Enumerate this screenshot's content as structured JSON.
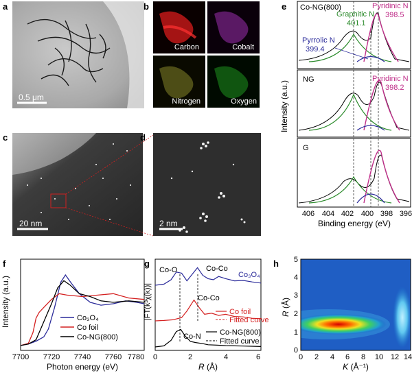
{
  "panels": {
    "a": {
      "letter": "a",
      "scale_bar": "0.5 μm"
    },
    "b": {
      "letter": "b",
      "maps": [
        "Carbon",
        "Cobalt",
        "Nitrogen",
        "Oxygen"
      ],
      "colors": [
        "#d42020",
        "#b040c0",
        "#c8c040",
        "#30b030"
      ]
    },
    "c": {
      "letter": "c",
      "scale_bar": "20 nm"
    },
    "d": {
      "letter": "d",
      "scale_bar": "2 nm"
    },
    "e": {
      "letter": "e",
      "ylabel": "Intensity (a.u.)",
      "xlabel": "Binding energy (eV)",
      "xticks": [
        "406",
        "404",
        "402",
        "400",
        "398",
        "396"
      ],
      "subplots": [
        {
          "name": "Co-NG(800)",
          "annotations": [
            {
              "text": "Graphitic N",
              "color": "#2a8a2a"
            },
            {
              "text": "401.1",
              "color": "#2a8a2a"
            },
            {
              "text": "Pyridinic N",
              "color": "#c0308a"
            },
            {
              "text": "398.5",
              "color": "#c0308a"
            },
            {
              "text": "Pyrrolic N",
              "color": "#2a2a9a"
            },
            {
              "text": "399.4",
              "color": "#2a2a9a"
            }
          ]
        },
        {
          "name": "NG",
          "annotations": [
            {
              "text": "Pyridinic N",
              "color": "#c0308a"
            },
            {
              "text": "398.2",
              "color": "#c0308a"
            }
          ]
        },
        {
          "name": "G",
          "annotations": []
        }
      ]
    },
    "f": {
      "letter": "f",
      "ylabel": "Intensity (a.u.)",
      "xlabel": "Photon energy (eV)",
      "xticks": [
        "7700",
        "7720",
        "7740",
        "7760",
        "7780"
      ],
      "legend": [
        {
          "text": "Co₃O₄",
          "color": "#2b2b9a"
        },
        {
          "text": "Co foil",
          "color": "#d42020"
        },
        {
          "text": "Co-NG(800)",
          "color": "#000000"
        }
      ]
    },
    "g": {
      "letter": "g",
      "ylabel": "|FT(k³χ(k))|",
      "xlabel_italic": "R",
      "xlabel_rest": " (Å)",
      "xticks": [
        "0",
        "2",
        "4",
        "6"
      ],
      "labels": [
        {
          "text": "Co-O",
          "color": "#000000"
        },
        {
          "text": "Co-Co",
          "color": "#000000"
        },
        {
          "text": "Co₃O₄",
          "color": "#2b2b9a"
        },
        {
          "text": "Co-Co",
          "color": "#000000"
        },
        {
          "text": "Co foil",
          "color": "#d42020"
        },
        {
          "text": "Fitted curve",
          "color": "#d42020"
        },
        {
          "text": "Co-N",
          "color": "#000000"
        },
        {
          "text": "Co-NG(800)",
          "color": "#000000"
        },
        {
          "text": "Fitted curve",
          "color": "#000000"
        }
      ]
    },
    "h": {
      "letter": "h",
      "ylabel_italic": "R",
      "ylabel_rest": " (Å)",
      "xlabel_italic": "K",
      "xlabel_rest": " (Å⁻¹)",
      "xticks": [
        "0",
        "2",
        "4",
        "6",
        "8",
        "10",
        "12",
        "14"
      ],
      "yticks": [
        "0",
        "1",
        "2",
        "3",
        "4",
        "5"
      ]
    }
  },
  "chart_data": [
    {
      "type": "line",
      "panel": "e",
      "xlim": [
        407,
        395
      ],
      "x_unit": "eV",
      "series": [
        {
          "name": "Co-NG(800)",
          "x": [
            406.5,
            405,
            404,
            403,
            402,
            401.5,
            401.1,
            400.5,
            400,
            399.4,
            399,
            398.5,
            398,
            397.5,
            397,
            396.5,
            396,
            395.5
          ],
          "y": [
            0.05,
            0.07,
            0.12,
            0.25,
            0.45,
            0.55,
            0.58,
            0.5,
            0.42,
            0.5,
            0.75,
            1.0,
            0.85,
            0.45,
            0.15,
            0.06,
            0.04,
            0.03
          ]
        },
        {
          "name": "NG",
          "x": [
            406.5,
            405,
            404,
            403,
            402,
            401.5,
            401.1,
            400.5,
            400,
            399.5,
            399,
            398.5,
            398.2,
            397.8,
            397.5,
            397,
            396.5,
            396,
            395.5
          ],
          "y": [
            0.05,
            0.07,
            0.15,
            0.35,
            0.65,
            0.78,
            0.8,
            0.6,
            0.48,
            0.46,
            0.7,
            0.95,
            1.0,
            0.75,
            0.45,
            0.15,
            0.06,
            0.04,
            0.03
          ]
        },
        {
          "name": "G",
          "x": [
            406.5,
            405,
            404,
            403,
            402,
            401.5,
            401,
            400.5,
            400,
            399.5,
            399,
            398.5,
            398.2,
            397.8,
            397.5,
            397,
            396.5,
            396,
            395.5
          ],
          "y": [
            0.04,
            0.06,
            0.12,
            0.22,
            0.35,
            0.42,
            0.43,
            0.38,
            0.32,
            0.35,
            0.55,
            0.9,
            1.0,
            0.8,
            0.45,
            0.15,
            0.05,
            0.03,
            0.02
          ]
        }
      ]
    },
    {
      "type": "line",
      "panel": "f",
      "xlim": [
        7700,
        7780
      ],
      "x_unit": "eV",
      "series": [
        {
          "name": "Co₃O₄",
          "x": [
            7700,
            7705,
            7710,
            7715,
            7718,
            7722,
            7726,
            7729,
            7733,
            7738,
            7745,
            7752,
            7760,
            7768,
            7775,
            7780
          ],
          "y": [
            0.02,
            0.04,
            0.08,
            0.14,
            0.25,
            0.55,
            0.9,
            1.0,
            0.88,
            0.74,
            0.62,
            0.58,
            0.6,
            0.64,
            0.62,
            0.6
          ]
        },
        {
          "name": "Co foil",
          "x": [
            7700,
            7705,
            7708,
            7710,
            7712,
            7715,
            7720,
            7725,
            7730,
            7740,
            7750,
            7760,
            7770,
            7780
          ],
          "y": [
            0.02,
            0.05,
            0.2,
            0.4,
            0.48,
            0.55,
            0.66,
            0.74,
            0.72,
            0.7,
            0.72,
            0.74,
            0.68,
            0.66
          ]
        },
        {
          "name": "Co-NG(800)",
          "x": [
            7700,
            7705,
            7710,
            7713,
            7716,
            7720,
            7724,
            7728,
            7732,
            7738,
            7745,
            7752,
            7760,
            7770,
            7780
          ],
          "y": [
            0.02,
            0.04,
            0.1,
            0.25,
            0.4,
            0.6,
            0.82,
            0.92,
            0.86,
            0.74,
            0.7,
            0.64,
            0.62,
            0.64,
            0.62
          ]
        }
      ]
    },
    {
      "type": "line",
      "panel": "g",
      "xlim": [
        0,
        6
      ],
      "x_unit": "Å",
      "series": [
        {
          "name": "Co₃O₄",
          "x": [
            0,
            0.5,
            0.9,
            1.2,
            1.5,
            1.8,
            2.1,
            2.4,
            2.7,
            3.0,
            3.3,
            3.6,
            4.0,
            4.5,
            5.0,
            5.5,
            6.0
          ],
          "y": [
            0.0,
            0.05,
            0.25,
            0.6,
            0.55,
            0.2,
            0.5,
            0.8,
            0.45,
            0.3,
            0.25,
            0.4,
            0.3,
            0.2,
            0.22,
            0.15,
            0.1
          ]
        },
        {
          "name": "Co foil",
          "x": [
            0,
            0.5,
            1.0,
            1.5,
            1.8,
            2.2,
            2.5,
            2.8,
            3.2,
            3.6,
            4.0,
            4.5,
            5.0,
            5.5,
            6.0
          ],
          "y": [
            0.0,
            0.02,
            0.05,
            0.15,
            0.45,
            0.95,
            0.6,
            0.3,
            0.35,
            0.25,
            0.3,
            0.2,
            0.18,
            0.12,
            0.1
          ]
        },
        {
          "name": "Co-NG(800)",
          "x": [
            0,
            0.5,
            0.9,
            1.2,
            1.45,
            1.7,
            2.0,
            2.3,
            2.7,
            3.0,
            3.5,
            4.0,
            4.5,
            5.0,
            5.5,
            6.0
          ],
          "y": [
            0.0,
            0.05,
            0.3,
            0.7,
            0.8,
            0.5,
            0.25,
            0.2,
            0.15,
            0.1,
            0.08,
            0.06,
            0.05,
            0.04,
            0.03,
            0.02
          ]
        }
      ]
    },
    {
      "type": "heatmap",
      "panel": "h",
      "xlim": [
        0,
        14
      ],
      "ylim": [
        0,
        5
      ],
      "hotspots": [
        {
          "k": 5.5,
          "r": 1.4,
          "intensity": 1.0
        },
        {
          "k": 13.0,
          "r": 1.5,
          "intensity": 0.6
        }
      ]
    }
  ]
}
